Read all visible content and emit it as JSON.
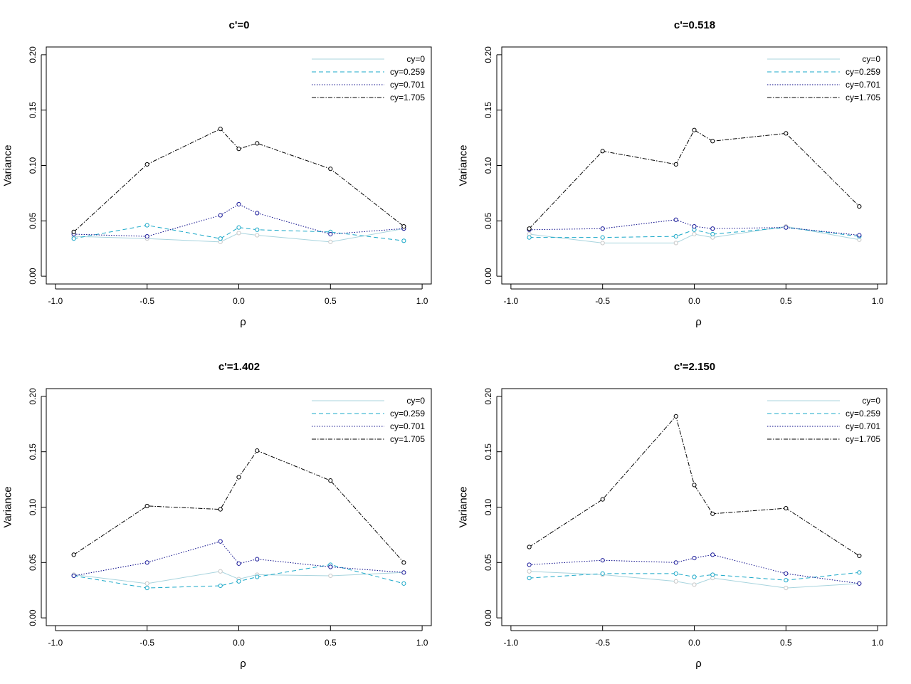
{
  "legend_position": "top-right",
  "axes": {
    "xlabel": "ρ",
    "ylabel": "Variance",
    "xlim": [
      -1.05,
      1.05
    ],
    "ylim": [
      -0.007,
      0.207
    ],
    "xticks": [
      "-1.0",
      "-0.5",
      "0.0",
      "0.5",
      "1.0"
    ],
    "xtick_values": [
      -1.0,
      -0.5,
      0.0,
      0.5,
      1.0
    ],
    "yticks": [
      "0.00",
      "0.05",
      "0.10",
      "0.15",
      "0.20"
    ],
    "ytick_values": [
      0.0,
      0.05,
      0.1,
      0.15,
      0.2
    ]
  },
  "series_styles": [
    {
      "name": "cy=0",
      "color": "#a8d4de",
      "dash": "none",
      "marker_color": "#c8c8c8"
    },
    {
      "name": "cy=0.259",
      "color": "#1aa8c8",
      "dash": "6 4",
      "marker_color": "#1aa8c8"
    },
    {
      "name": "cy=0.701",
      "color": "#0b0b8a",
      "dash": "1.5 2",
      "marker_color": "#1a1a9a"
    },
    {
      "name": "cy=1.705",
      "color": "#000000",
      "dash": "6 2 1.5 2",
      "marker_color": "#000000"
    }
  ],
  "chart_data": [
    {
      "type": "line",
      "title": "c'=0",
      "xlabel": "ρ",
      "ylabel": "Variance",
      "ylim": [
        0,
        0.2
      ],
      "x": [
        -0.9,
        -0.5,
        -0.1,
        0.0,
        0.1,
        0.5,
        0.9
      ],
      "series": [
        {
          "name": "cy=0",
          "values": [
            0.036,
            0.034,
            0.031,
            0.039,
            0.037,
            0.031,
            0.043
          ]
        },
        {
          "name": "cy=0.259",
          "values": [
            0.034,
            0.046,
            0.034,
            0.044,
            0.042,
            0.04,
            0.032
          ]
        },
        {
          "name": "cy=0.701",
          "values": [
            0.038,
            0.036,
            0.055,
            0.065,
            0.057,
            0.038,
            0.043
          ]
        },
        {
          "name": "cy=1.705",
          "values": [
            0.04,
            0.101,
            0.133,
            0.115,
            0.12,
            0.097,
            0.045
          ]
        }
      ]
    },
    {
      "type": "line",
      "title": "c'=0.518",
      "xlabel": "ρ",
      "ylabel": "Variance",
      "ylim": [
        0,
        0.2
      ],
      "x": [
        -0.9,
        -0.5,
        -0.1,
        0.0,
        0.1,
        0.5,
        0.9
      ],
      "series": [
        {
          "name": "cy=0",
          "values": [
            0.038,
            0.03,
            0.03,
            0.038,
            0.035,
            0.045,
            0.033
          ]
        },
        {
          "name": "cy=0.259",
          "values": [
            0.035,
            0.035,
            0.036,
            0.042,
            0.038,
            0.044,
            0.036
          ]
        },
        {
          "name": "cy=0.701",
          "values": [
            0.042,
            0.043,
            0.051,
            0.045,
            0.043,
            0.044,
            0.037
          ]
        },
        {
          "name": "cy=1.705",
          "values": [
            0.043,
            0.113,
            0.101,
            0.132,
            0.122,
            0.129,
            0.063
          ]
        }
      ]
    },
    {
      "type": "line",
      "title": "c'=1.402",
      "xlabel": "ρ",
      "ylabel": "Variance",
      "ylim": [
        0,
        0.2
      ],
      "x": [
        -0.9,
        -0.5,
        -0.1,
        0.0,
        0.1,
        0.5,
        0.9
      ],
      "series": [
        {
          "name": "cy=0",
          "values": [
            0.039,
            0.031,
            0.042,
            0.035,
            0.039,
            0.038,
            0.041
          ]
        },
        {
          "name": "cy=0.259",
          "values": [
            0.038,
            0.027,
            0.029,
            0.033,
            0.037,
            0.048,
            0.031
          ]
        },
        {
          "name": "cy=0.701",
          "values": [
            0.038,
            0.05,
            0.069,
            0.049,
            0.053,
            0.046,
            0.041
          ]
        },
        {
          "name": "cy=1.705",
          "values": [
            0.057,
            0.101,
            0.098,
            0.127,
            0.151,
            0.124,
            0.05
          ]
        }
      ]
    },
    {
      "type": "line",
      "title": "c'=2.150",
      "xlabel": "ρ",
      "ylabel": "Variance",
      "ylim": [
        0,
        0.2
      ],
      "x": [
        -0.9,
        -0.5,
        -0.1,
        0.0,
        0.1,
        0.5,
        0.9
      ],
      "series": [
        {
          "name": "cy=0",
          "values": [
            0.042,
            0.039,
            0.033,
            0.03,
            0.036,
            0.027,
            0.031
          ]
        },
        {
          "name": "cy=0.259",
          "values": [
            0.036,
            0.04,
            0.04,
            0.037,
            0.039,
            0.034,
            0.041
          ]
        },
        {
          "name": "cy=0.701",
          "values": [
            0.048,
            0.052,
            0.05,
            0.054,
            0.057,
            0.04,
            0.031
          ]
        },
        {
          "name": "cy=1.705",
          "values": [
            0.064,
            0.107,
            0.182,
            0.12,
            0.094,
            0.099,
            0.056
          ]
        }
      ]
    }
  ]
}
